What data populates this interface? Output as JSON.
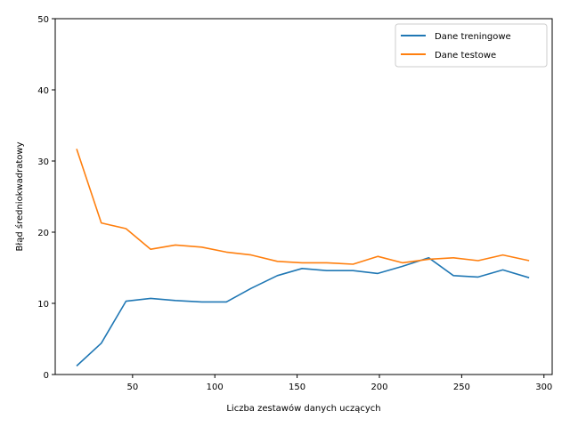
{
  "chart_data": {
    "type": "line",
    "xlabel": "Liczba zestawów danych uczących",
    "ylabel": "Błąd średniokwadratowy",
    "xlim": [
      3,
      305
    ],
    "ylim": [
      0,
      50
    ],
    "xticks": [
      50,
      100,
      150,
      200,
      250,
      300
    ],
    "yticks": [
      0,
      10,
      20,
      30,
      40,
      50
    ],
    "legend_position": "top-right",
    "grid": false,
    "x": [
      16,
      31,
      46,
      61,
      76,
      92,
      107,
      122,
      138,
      153,
      168,
      184,
      199,
      214,
      230,
      245,
      260,
      275,
      291
    ],
    "series": [
      {
        "name": "Dane treningowe",
        "color": "#1f77b4",
        "values": [
          1.2,
          4.4,
          10.3,
          10.7,
          10.4,
          10.2,
          10.2,
          12.1,
          13.9,
          14.9,
          14.6,
          14.6,
          14.2,
          15.2,
          16.4,
          13.9,
          13.7,
          14.7,
          13.6
        ]
      },
      {
        "name": "Dane testowe",
        "color": "#ff7f0e",
        "values": [
          31.7,
          21.3,
          20.5,
          17.6,
          18.2,
          17.9,
          17.2,
          16.8,
          15.9,
          15.7,
          15.7,
          15.5,
          16.6,
          15.7,
          16.2,
          16.4,
          16.0,
          16.8,
          16.0
        ]
      }
    ]
  }
}
